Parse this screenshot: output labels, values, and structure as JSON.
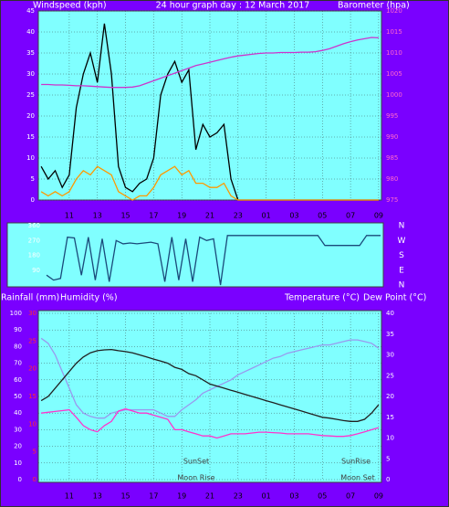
{
  "chart_data": [
    {
      "type": "line",
      "title": "24 hour graph day : 12 March 2017",
      "ylabel": "Windspeed (kph)",
      "y2label": "Barometer (hpa)",
      "x": [
        9,
        9.5,
        10,
        10.5,
        11,
        11.5,
        12,
        12.5,
        13,
        13.5,
        14,
        14.5,
        15,
        15.5,
        16,
        16.5,
        17,
        17.5,
        18,
        18.5,
        19,
        19.5,
        20,
        20.5,
        21,
        21.5,
        22,
        22.5,
        23,
        23.5,
        24,
        24.5,
        25,
        25.5,
        26,
        26.5,
        27,
        27.5,
        28,
        28.5,
        29,
        29.5,
        30,
        30.5,
        31,
        31.5,
        32,
        32.5,
        33
      ],
      "xlim": [
        8.8,
        33.2
      ],
      "xticks": [
        11,
        13,
        15,
        17,
        19,
        21,
        23,
        {
          "value": 25,
          "label": "01"
        },
        {
          "value": 27,
          "label": "03"
        },
        {
          "value": 29,
          "label": "05"
        },
        {
          "value": 31,
          "label": "07"
        },
        {
          "value": 33,
          "label": "09"
        }
      ],
      "ylim": [
        0,
        45
      ],
      "yticks": [
        0,
        5,
        10,
        15,
        20,
        25,
        30,
        35,
        40,
        45
      ],
      "y2lim": [
        975,
        1020
      ],
      "y2ticks": [
        975,
        980,
        985,
        990,
        995,
        1000,
        1005,
        1010,
        1015,
        1020
      ],
      "grid": true,
      "series": [
        {
          "color": "#000000",
          "values": [
            8,
            5,
            7,
            3,
            6,
            22,
            30,
            35,
            28,
            42,
            30,
            8,
            3,
            2,
            4,
            5,
            10,
            25,
            30,
            33,
            28,
            31,
            12,
            18,
            15,
            16,
            18,
            5,
            0,
            0,
            0,
            0,
            0,
            0,
            0,
            0,
            0,
            0,
            0,
            0,
            0,
            0,
            0,
            0,
            0,
            0,
            0,
            0,
            0
          ]
        },
        {
          "color": "#ff9900",
          "values": [
            2,
            1,
            2,
            1,
            2,
            5,
            7,
            6,
            8,
            7,
            6,
            2,
            1,
            0,
            1,
            1,
            3,
            6,
            7,
            8,
            6,
            7,
            4,
            4,
            3,
            3,
            4,
            1,
            0,
            0,
            0,
            0,
            0,
            0,
            0,
            0,
            0,
            0,
            0,
            0,
            0,
            0,
            0,
            0,
            0,
            0,
            0,
            0,
            0
          ]
        },
        {
          "color": "#cc33cc",
          "axis": "y2",
          "values": [
            1002.5,
            1002.5,
            1002.4,
            1002.4,
            1002.3,
            1002.2,
            1002.2,
            1002.1,
            1002,
            1001.9,
            1001.8,
            1001.8,
            1001.8,
            1001.9,
            1002.2,
            1002.8,
            1003.4,
            1004,
            1004.6,
            1005.2,
            1005.8,
            1006.4,
            1007,
            1007.4,
            1007.8,
            1008.2,
            1008.6,
            1009,
            1009.3,
            1009.5,
            1009.7,
            1009.9,
            1010,
            1010,
            1010.1,
            1010.1,
            1010.1,
            1010.2,
            1010.2,
            1010.3,
            1010.6,
            1011,
            1011.6,
            1012.2,
            1012.7,
            1013.1,
            1013.4,
            1013.7,
            1013.6
          ]
        }
      ]
    },
    {
      "type": "line",
      "x": [
        9,
        9.5,
        10,
        10.5,
        11,
        11.5,
        12,
        12.5,
        13,
        13.5,
        14,
        14.5,
        15,
        15.5,
        16,
        16.5,
        17,
        17.5,
        18,
        18.5,
        19,
        19.5,
        20,
        20.5,
        21,
        21.5,
        22,
        22.5,
        23,
        23.5,
        24,
        24.5,
        25,
        25.5,
        26,
        26.5,
        27,
        27.5,
        28,
        28.5,
        29,
        29.5,
        30,
        30.5,
        31,
        31.5,
        32,
        32.5,
        33
      ],
      "xlim": [
        8.8,
        33.2
      ],
      "ylim": [
        0,
        360
      ],
      "yticks": [
        90,
        180,
        270,
        360
      ],
      "yticks_right": [
        {
          "value": 360,
          "label": "N"
        },
        {
          "value": 270,
          "label": "W"
        },
        {
          "value": 180,
          "label": "S"
        },
        {
          "value": 90,
          "label": "E"
        },
        {
          "value": 0,
          "label": "N"
        }
      ],
      "grid": false,
      "series": [
        {
          "color": "#1a4a7a",
          "values": [
            60,
            30,
            40,
            290,
            285,
            60,
            290,
            30,
            280,
            20,
            270,
            250,
            255,
            250,
            255,
            260,
            250,
            20,
            290,
            30,
            280,
            20,
            290,
            270,
            280,
            0,
            300,
            300,
            300,
            300,
            300,
            300,
            300,
            300,
            300,
            300,
            300,
            300,
            300,
            300,
            240,
            240,
            240,
            240,
            240,
            240,
            300,
            300,
            300
          ]
        }
      ]
    },
    {
      "type": "line",
      "y3label": "Rainfall (mm)",
      "ylabel": "Humidity (%)",
      "y2labels": [
        "Temperature (°C)",
        "Dew Point (°C)"
      ],
      "x": [
        9,
        9.5,
        10,
        10.5,
        11,
        11.5,
        12,
        12.5,
        13,
        13.5,
        14,
        14.5,
        15,
        15.5,
        16,
        16.5,
        17,
        17.5,
        18,
        18.5,
        19,
        19.5,
        20,
        20.5,
        21,
        21.5,
        22,
        22.5,
        23,
        23.5,
        24,
        24.5,
        25,
        25.5,
        26,
        26.5,
        27,
        27.5,
        28,
        28.5,
        29,
        29.5,
        30,
        30.5,
        31,
        31.5,
        32,
        32.5,
        33
      ],
      "xlim": [
        8.8,
        33.2
      ],
      "xticks": [
        11,
        13,
        15,
        17,
        19,
        21,
        23,
        {
          "value": 25,
          "label": "01"
        },
        {
          "value": 27,
          "label": "03"
        },
        {
          "value": 29,
          "label": "05"
        },
        {
          "value": 31,
          "label": "07"
        },
        {
          "value": 33,
          "label": "09"
        }
      ],
      "ylim": [
        0,
        100
      ],
      "yticks": [
        0,
        10,
        20,
        30,
        40,
        50,
        60,
        70,
        80,
        90,
        100
      ],
      "y2lim": [
        0,
        40
      ],
      "y2ticks": [
        0,
        5,
        10,
        15,
        20,
        25,
        30,
        35,
        40
      ],
      "y3lim": [
        0,
        30
      ],
      "y3ticks": [
        0,
        5,
        10,
        15,
        20,
        25,
        30
      ],
      "grid": true,
      "annotations": [
        "SunSet",
        "SunRise",
        "Moon Rise",
        "Moon Set"
      ],
      "series": [
        {
          "color": "#9999ee",
          "values": [
            85,
            82,
            75,
            65,
            55,
            45,
            40,
            38,
            37,
            37,
            40,
            41,
            42,
            42,
            42,
            42,
            42,
            40,
            38,
            38,
            42,
            45,
            48,
            52,
            54,
            56,
            58,
            60,
            63,
            65,
            67,
            69,
            71,
            73,
            74,
            76,
            77,
            78,
            79,
            80,
            81,
            81,
            82,
            83,
            84,
            84,
            83,
            82,
            79
          ]
        },
        {
          "color": "#202020",
          "axis": "y2",
          "values": [
            19,
            20,
            22,
            24,
            26,
            28,
            29.5,
            30.5,
            31,
            31.2,
            31.3,
            31,
            30.8,
            30.5,
            30,
            29.5,
            29,
            28.5,
            28,
            27,
            26.5,
            25.5,
            25,
            24,
            23,
            22.5,
            22,
            21.5,
            21,
            20.5,
            20,
            19.5,
            19,
            18.5,
            18,
            17.5,
            17,
            16.5,
            16,
            15.5,
            15,
            14.8,
            14.5,
            14.2,
            14,
            14,
            14.5,
            16,
            18
          ]
        },
        {
          "color": "#ff33cc",
          "axis": "y2",
          "values": [
            16,
            16.2,
            16.4,
            16.6,
            16.8,
            15,
            13,
            12,
            11.5,
            13,
            14,
            16.5,
            17,
            16.5,
            16,
            16,
            15.5,
            15,
            14.5,
            12,
            12,
            11.5,
            11,
            10.5,
            10.5,
            10,
            10.5,
            11,
            11,
            11,
            11.2,
            11.4,
            11.4,
            11.3,
            11.2,
            11,
            11,
            11,
            11,
            10.8,
            10.6,
            10.5,
            10.4,
            10.4,
            10.6,
            11,
            11.5,
            12,
            12.5
          ]
        }
      ]
    }
  ]
}
